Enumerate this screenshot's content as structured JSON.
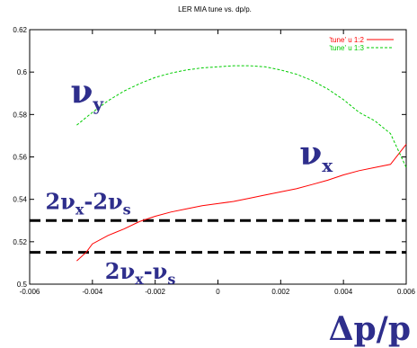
{
  "chart_data": {
    "type": "line",
    "title": "LER MIA tune vs. dp/p.",
    "xlabel": "Δp/p",
    "ylabel": "",
    "xlim": [
      -0.006,
      0.006
    ],
    "ylim": [
      0.5,
      0.62
    ],
    "xticks": [
      "-0.006",
      "-0.004",
      "-0.002",
      "0",
      "0.002",
      "0.004",
      "0.006"
    ],
    "yticks": [
      "0.5",
      "0.52",
      "0.54",
      "0.56",
      "0.58",
      "0.6",
      "0.62"
    ],
    "legend_position": "top-right",
    "series": [
      {
        "name": "'tune' u 1:2",
        "color": "#ff0000",
        "style": "solid",
        "x": [
          -0.0045,
          -0.0042,
          -0.004,
          -0.0035,
          -0.003,
          -0.0025,
          -0.002,
          -0.0015,
          -0.001,
          -0.0005,
          0.0,
          0.0005,
          0.001,
          0.0015,
          0.002,
          0.0025,
          0.003,
          0.0035,
          0.004,
          0.0045,
          0.005,
          0.0055,
          0.006
        ],
        "y": [
          0.511,
          0.515,
          0.519,
          0.523,
          0.526,
          0.5295,
          0.532,
          0.534,
          0.5355,
          0.537,
          0.538,
          0.539,
          0.5405,
          0.542,
          0.5435,
          0.545,
          0.547,
          0.549,
          0.5515,
          0.5535,
          0.555,
          0.5565,
          0.566
        ]
      },
      {
        "name": "'tune' u 1:3",
        "color": "#00cc00",
        "style": "dashed",
        "x": [
          -0.0045,
          -0.004,
          -0.0035,
          -0.003,
          -0.0025,
          -0.002,
          -0.0015,
          -0.001,
          -0.0005,
          0.0,
          0.0005,
          0.001,
          0.0015,
          0.002,
          0.0025,
          0.003,
          0.0035,
          0.004,
          0.0045,
          0.005,
          0.0055,
          0.006
        ],
        "y": [
          0.575,
          0.581,
          0.5865,
          0.591,
          0.5945,
          0.5975,
          0.5995,
          0.601,
          0.602,
          0.6025,
          0.603,
          0.603,
          0.6025,
          0.601,
          0.599,
          0.596,
          0.592,
          0.587,
          0.581,
          0.577,
          0.571,
          0.555
        ]
      }
    ],
    "reference_lines": [
      {
        "y": 0.53,
        "style": "bold-dashed",
        "color": "#000000"
      },
      {
        "y": 0.515,
        "style": "bold-dashed",
        "color": "#000000"
      }
    ],
    "annotations": [
      {
        "id": "nu-y",
        "base": "ν",
        "sub": "y",
        "x": -0.0047,
        "y": 0.5855,
        "size": "large"
      },
      {
        "id": "nu-x",
        "base": "ν",
        "sub": "x",
        "x": 0.0026,
        "y": 0.5565,
        "size": "large"
      },
      {
        "id": "two-nux-two-nus",
        "parts": [
          [
            "2ν",
            ""
          ],
          [
            "x",
            "sub"
          ],
          [
            "-2ν",
            ""
          ],
          [
            "s",
            "sub"
          ]
        ],
        "x": -0.0055,
        "y": 0.5355,
        "size": "medium"
      },
      {
        "id": "two-nux-nus",
        "parts": [
          [
            "2ν",
            ""
          ],
          [
            "x",
            "sub"
          ],
          [
            "-ν",
            ""
          ],
          [
            "s",
            "sub"
          ]
        ],
        "x": -0.0036,
        "y": 0.5025,
        "size": "medium"
      }
    ],
    "big_xlabel": "Δp/p"
  }
}
